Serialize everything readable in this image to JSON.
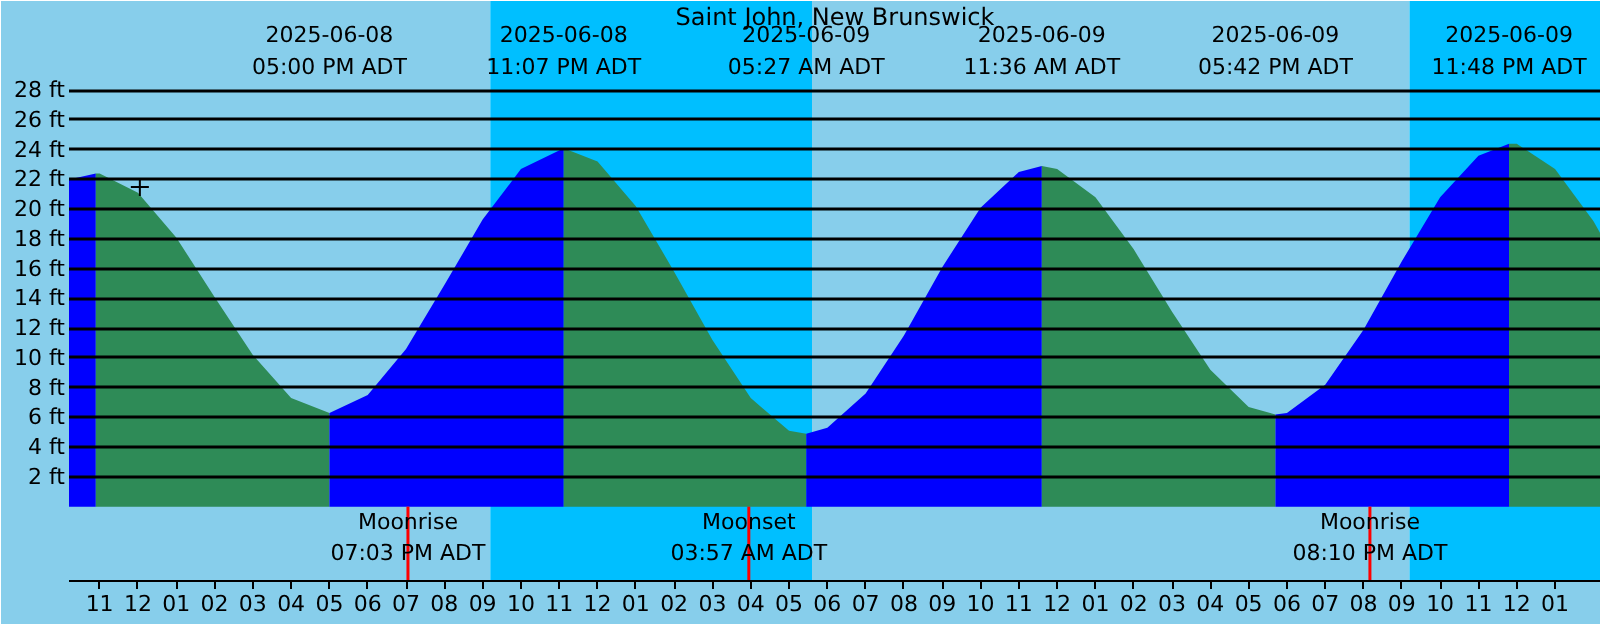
{
  "chart_data": {
    "type": "area",
    "title": "Saint John, New Brunswick",
    "series": [
      {
        "color": "#0000ff",
        "x": [
          "2025-06-08T10:12",
          "2025-06-08T10:54"
        ],
        "values": [
          22.0,
          22.4
        ]
      },
      {
        "color": "#2e8b57",
        "x": [
          "2025-06-08T10:54",
          "2025-06-08T11:00",
          "2025-06-08T12:00",
          "2025-06-08T13:00",
          "2025-06-08T14:00",
          "2025-06-08T15:00",
          "2025-06-08T16:00",
          "2025-06-08T17:00"
        ],
        "values": [
          22.4,
          22.4,
          21.1,
          18.1,
          14.1,
          10.2,
          7.3,
          6.3
        ]
      },
      {
        "color": "#0000ff",
        "x": [
          "2025-06-08T17:00",
          "2025-06-08T18:00",
          "2025-06-08T19:00",
          "2025-06-08T20:00",
          "2025-06-08T21:00",
          "2025-06-08T22:00",
          "2025-06-08T23:07"
        ],
        "values": [
          6.3,
          7.5,
          10.6,
          14.9,
          19.3,
          22.7,
          24.1
        ]
      },
      {
        "color": "#2e8b57",
        "x": [
          "2025-06-08T23:07",
          "2025-06-09T00:00",
          "2025-06-09T01:00",
          "2025-06-09T02:00",
          "2025-06-09T03:00",
          "2025-06-09T04:00",
          "2025-06-09T05:00",
          "2025-06-09T05:27"
        ],
        "values": [
          24.1,
          23.2,
          20.2,
          15.8,
          11.2,
          7.3,
          5.1,
          4.9
        ]
      },
      {
        "color": "#0000ff",
        "x": [
          "2025-06-09T05:27",
          "2025-06-09T06:00",
          "2025-06-09T07:00",
          "2025-06-09T08:00",
          "2025-06-09T09:00",
          "2025-06-09T10:00",
          "2025-06-09T11:00",
          "2025-06-09T11:36"
        ],
        "values": [
          4.9,
          5.3,
          7.6,
          11.5,
          16.1,
          20.1,
          22.5,
          22.9
        ]
      },
      {
        "color": "#2e8b57",
        "x": [
          "2025-06-09T11:36",
          "2025-06-09T12:00",
          "2025-06-09T13:00",
          "2025-06-09T14:00",
          "2025-06-09T15:00",
          "2025-06-09T16:00",
          "2025-06-09T17:00",
          "2025-06-09T17:42"
        ],
        "values": [
          22.9,
          22.7,
          20.8,
          17.3,
          13.1,
          9.2,
          6.7,
          6.2
        ]
      },
      {
        "color": "#0000ff",
        "x": [
          "2025-06-09T17:42",
          "2025-06-09T18:00",
          "2025-06-09T19:00",
          "2025-06-09T20:00",
          "2025-06-09T21:00",
          "2025-06-09T22:00",
          "2025-06-09T23:00",
          "2025-06-09T23:48"
        ],
        "values": [
          6.2,
          6.3,
          8.2,
          11.9,
          16.5,
          20.8,
          23.6,
          24.4
        ]
      },
      {
        "color": "#2e8b57",
        "x": [
          "2025-06-09T23:48",
          "2025-06-10T00:00",
          "2025-06-10T01:00",
          "2025-06-10T02:00",
          "2025-06-10T02:12"
        ],
        "values": [
          24.4,
          24.4,
          22.7,
          19.2,
          18.3
        ]
      },
      {
        "type": "scatter",
        "marker": "cross",
        "color": "#000000",
        "x": [
          "2025-06-08T12:03"
        ],
        "values": [
          21.5
        ]
      }
    ],
    "xlim": [
      "2025-06-08T10:12",
      "2025-06-10T02:12"
    ],
    "ylim": [
      -5,
      34
    ],
    "xticks": [
      {
        "value": "2025-06-08T11:00",
        "label": "11"
      },
      {
        "value": "2025-06-08T12:00",
        "label": "12"
      },
      {
        "value": "2025-06-08T13:00",
        "label": "01"
      },
      {
        "value": "2025-06-08T14:00",
        "label": "02"
      },
      {
        "value": "2025-06-08T15:00",
        "label": "03"
      },
      {
        "value": "2025-06-08T16:00",
        "label": "04"
      },
      {
        "value": "2025-06-08T17:00",
        "label": "05"
      },
      {
        "value": "2025-06-08T18:00",
        "label": "06"
      },
      {
        "value": "2025-06-08T19:00",
        "label": "07"
      },
      {
        "value": "2025-06-08T20:00",
        "label": "08"
      },
      {
        "value": "2025-06-08T21:00",
        "label": "09"
      },
      {
        "value": "2025-06-08T22:00",
        "label": "10"
      },
      {
        "value": "2025-06-08T23:00",
        "label": "11"
      },
      {
        "value": "2025-06-09T00:00",
        "label": "12"
      },
      {
        "value": "2025-06-09T01:00",
        "label": "01"
      },
      {
        "value": "2025-06-09T02:00",
        "label": "02"
      },
      {
        "value": "2025-06-09T03:00",
        "label": "03"
      },
      {
        "value": "2025-06-09T04:00",
        "label": "04"
      },
      {
        "value": "2025-06-09T05:00",
        "label": "05"
      },
      {
        "value": "2025-06-09T06:00",
        "label": "06"
      },
      {
        "value": "2025-06-09T07:00",
        "label": "07"
      },
      {
        "value": "2025-06-09T08:00",
        "label": "08"
      },
      {
        "value": "2025-06-09T09:00",
        "label": "09"
      },
      {
        "value": "2025-06-09T10:00",
        "label": "10"
      },
      {
        "value": "2025-06-09T11:00",
        "label": "11"
      },
      {
        "value": "2025-06-09T12:00",
        "label": "12"
      },
      {
        "value": "2025-06-09T13:00",
        "label": "01"
      },
      {
        "value": "2025-06-09T14:00",
        "label": "02"
      },
      {
        "value": "2025-06-09T15:00",
        "label": "03"
      },
      {
        "value": "2025-06-09T16:00",
        "label": "04"
      },
      {
        "value": "2025-06-09T17:00",
        "label": "05"
      },
      {
        "value": "2025-06-09T18:00",
        "label": "06"
      },
      {
        "value": "2025-06-09T19:00",
        "label": "07"
      },
      {
        "value": "2025-06-09T20:00",
        "label": "08"
      },
      {
        "value": "2025-06-09T21:00",
        "label": "09"
      },
      {
        "value": "2025-06-09T22:00",
        "label": "10"
      },
      {
        "value": "2025-06-09T23:00",
        "label": "11"
      },
      {
        "value": "2025-06-10T00:00",
        "label": "12"
      },
      {
        "value": "2025-06-10T01:00",
        "label": "01"
      }
    ],
    "yticks": [
      {
        "value": 2,
        "label": "2 ft"
      },
      {
        "value": 4,
        "label": "4 ft"
      },
      {
        "value": 6,
        "label": "6 ft"
      },
      {
        "value": 8,
        "label": "8 ft"
      },
      {
        "value": 10,
        "label": "10 ft"
      },
      {
        "value": 12,
        "label": "12 ft"
      },
      {
        "value": 14,
        "label": "14 ft"
      },
      {
        "value": 16,
        "label": "16 ft"
      },
      {
        "value": 18,
        "label": "18 ft"
      },
      {
        "value": 20,
        "label": "20 ft"
      },
      {
        "value": 22,
        "label": "22 ft"
      },
      {
        "value": 24,
        "label": "24 ft"
      },
      {
        "value": 26,
        "label": "26 ft"
      },
      {
        "value": 28,
        "label": "28 ft"
      }
    ],
    "grid": "y",
    "bands": [
      {
        "axis": "x",
        "from": "2025-06-08T10:12",
        "to": "2025-06-08T21:12",
        "color": "#87ceeb"
      },
      {
        "axis": "x",
        "from": "2025-06-08T21:12",
        "to": "2025-06-09T05:36",
        "color": "#00bfff"
      },
      {
        "axis": "x",
        "from": "2025-06-09T05:36",
        "to": "2025-06-09T21:12",
        "color": "#87ceeb"
      },
      {
        "axis": "x",
        "from": "2025-06-09T21:12",
        "to": "2025-06-10T02:12",
        "color": "#00bfff"
      }
    ],
    "ref_lines": [
      {
        "axis": "x",
        "value": "2025-06-08T19:03",
        "label": "Moonrise\n07:03 PM ADT",
        "color": "#ff0000"
      },
      {
        "axis": "x",
        "value": "2025-06-09T03:57",
        "label": "Moonset\n03:57 AM ADT",
        "color": "#ff0000"
      },
      {
        "axis": "x",
        "value": "2025-06-09T20:10",
        "label": "Moonrise\n08:10 PM ADT",
        "color": "#ff0000"
      }
    ],
    "annotations": [
      "2025-06-08\n05:00 PM ADT",
      "2025-06-08\n11:07 PM ADT",
      "2025-06-09\n05:27 AM ADT",
      "2025-06-09\n11:36 AM ADT",
      "2025-06-09\n05:42 PM ADT",
      "2025-06-09\n11:48 PM ADT"
    ]
  }
}
